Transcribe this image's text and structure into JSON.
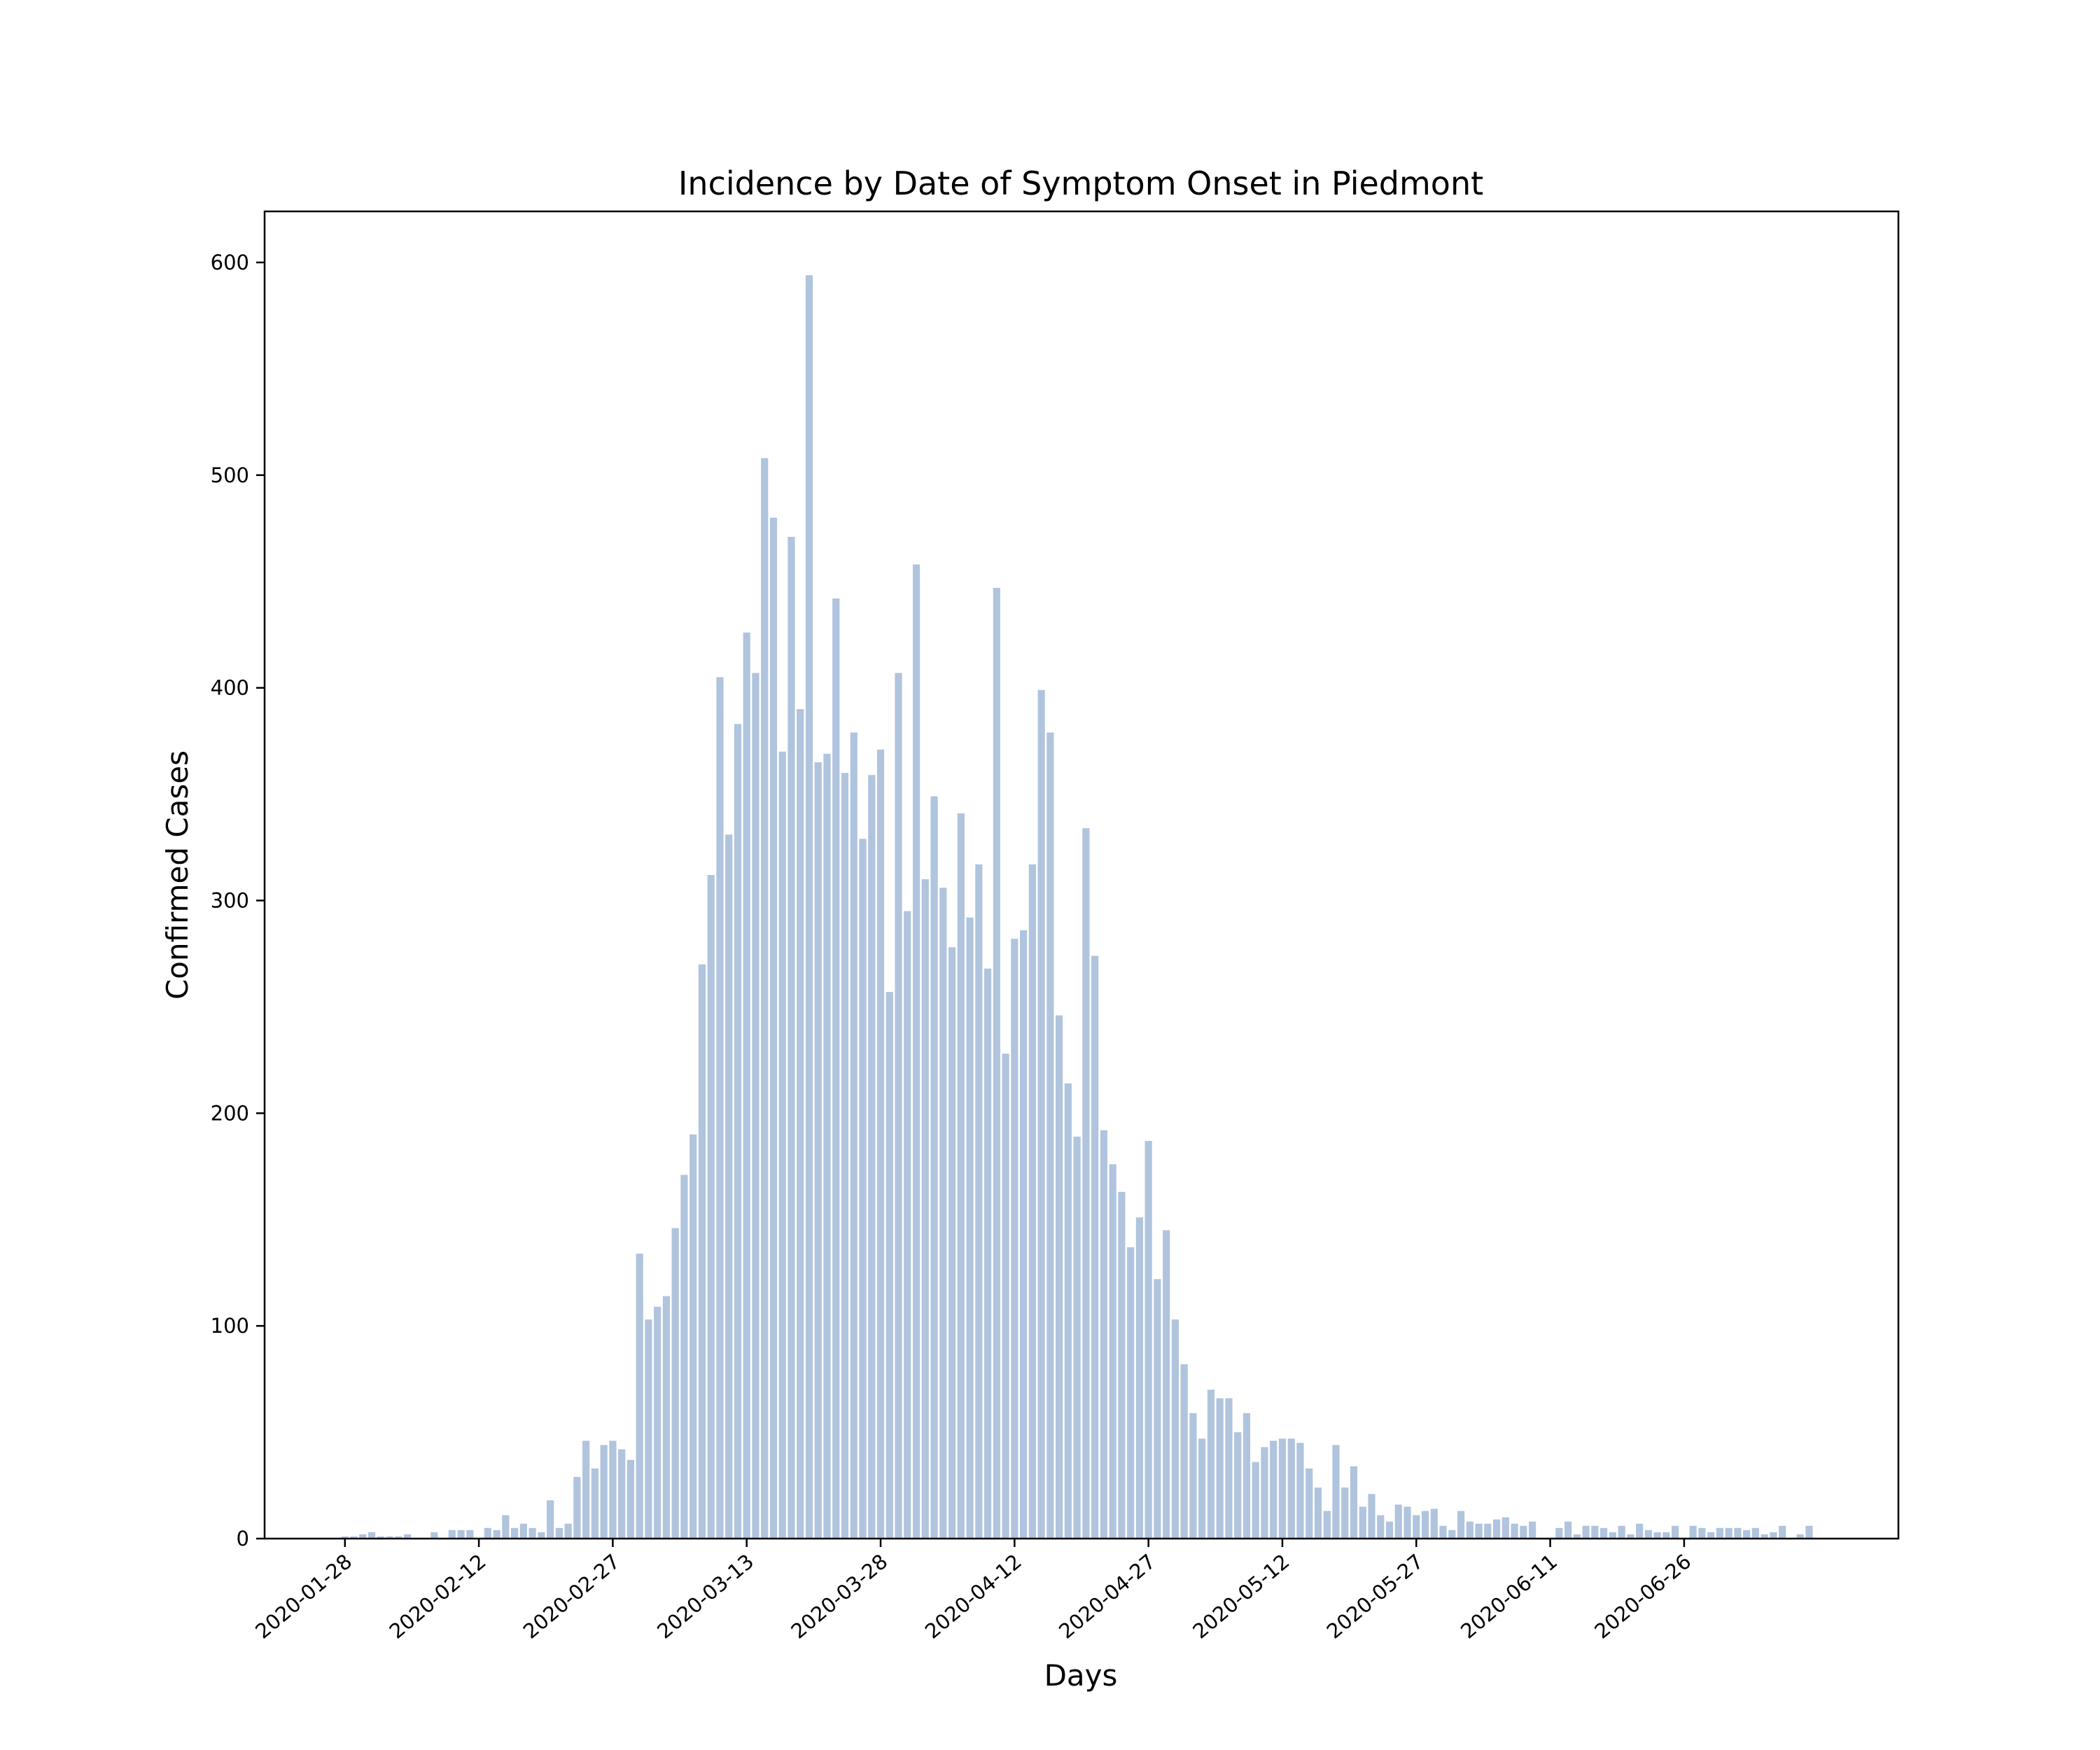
{
  "chart_data": {
    "type": "bar",
    "title": "Incidence by Date of Symptom Onset in Piedmont",
    "xlabel": "Days",
    "ylabel": "Confirmed Cases",
    "x_start": "2020-01-28",
    "x_range": [
      "2020-01-19",
      "2020-07-20"
    ],
    "ylim": [
      0,
      624
    ],
    "yticks": [
      0,
      100,
      200,
      300,
      400,
      500,
      600
    ],
    "xticks": [
      "2020-01-28",
      "2020-02-12",
      "2020-02-27",
      "2020-03-13",
      "2020-03-28",
      "2020-04-12",
      "2020-04-27",
      "2020-05-12",
      "2020-05-27",
      "2020-06-11",
      "2020-06-26"
    ],
    "grid": false,
    "legend": "none",
    "bar_color": "#b0c4de",
    "values": [
      1,
      1,
      2,
      3,
      1,
      1,
      1,
      2,
      0,
      0,
      3,
      0,
      4,
      4,
      4,
      0,
      5,
      4,
      11,
      5,
      7,
      5,
      3,
      18,
      5,
      7,
      29,
      46,
      33,
      44,
      46,
      42,
      37,
      134,
      103,
      109,
      114,
      146,
      171,
      190,
      270,
      312,
      405,
      331,
      383,
      426,
      407,
      508,
      480,
      370,
      471,
      390,
      594,
      365,
      369,
      442,
      360,
      379,
      329,
      359,
      371,
      257,
      407,
      295,
      458,
      310,
      349,
      306,
      278,
      341,
      292,
      317,
      268,
      447,
      228,
      282,
      286,
      317,
      399,
      379,
      246,
      214,
      189,
      334,
      274,
      192,
      176,
      163,
      137,
      151,
      187,
      122,
      145,
      103,
      82,
      59,
      47,
      70,
      66,
      66,
      50,
      59,
      36,
      43,
      46,
      47,
      47,
      45,
      33,
      24,
      13,
      44,
      24,
      34,
      15,
      21,
      11,
      8,
      16,
      15,
      11,
      13,
      14,
      6,
      4,
      13,
      8,
      7,
      7,
      9,
      10,
      7,
      6,
      8,
      0,
      0,
      5,
      8,
      2,
      6,
      6,
      5,
      3,
      6,
      2,
      7,
      4,
      3,
      3,
      6,
      0,
      6,
      5,
      3,
      5,
      5,
      5,
      4,
      5,
      2,
      3,
      6,
      0,
      2,
      6
    ]
  }
}
